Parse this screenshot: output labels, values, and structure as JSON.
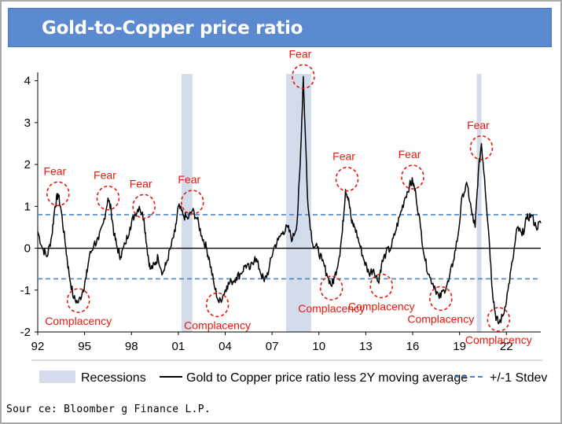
{
  "header": {
    "title": "Gold-to-Copper price ratio"
  },
  "source": "Sour ce: Bloomber g Finance L.P.",
  "colors": {
    "header_bg": "#5b8ad0",
    "recession": "#d3dcea",
    "stdev": "#4a86c8",
    "annotation": "#e8170c",
    "line": "#000000"
  },
  "chart_data": {
    "type": "line",
    "title": "Gold-to-Copper price ratio",
    "xlabel": "",
    "ylabel": "",
    "xlim": [
      1992,
      2024.2
    ],
    "ylim": [
      -2,
      4.2
    ],
    "x_tick_values": [
      1992,
      1995,
      1998,
      2001,
      2004,
      2007,
      2010,
      2013,
      2016,
      2019,
      2022
    ],
    "x_tick_labels": [
      "92",
      "95",
      "98",
      "01",
      "04",
      "07",
      "10",
      "13",
      "16",
      "19",
      "22"
    ],
    "y_ticks": [
      -2,
      -1,
      0,
      1,
      2,
      3,
      4
    ],
    "grid": false,
    "legend_position": "bottom",
    "series": [
      {
        "name": "Gold to Copper price ratio less 2Y moving average",
        "x": [
          1992.0,
          1992.3,
          1992.6,
          1992.9,
          1993.1,
          1993.3,
          1993.5,
          1993.8,
          1994.0,
          1994.3,
          1994.6,
          1994.9,
          1995.1,
          1995.3,
          1995.6,
          1995.9,
          1996.2,
          1996.5,
          1996.7,
          1996.9,
          1997.1,
          1997.3,
          1997.6,
          1997.9,
          1998.2,
          1998.5,
          1998.8,
          1999.0,
          1999.2,
          1999.5,
          1999.7,
          2000.0,
          2000.2,
          2000.5,
          2000.8,
          2001.0,
          2001.3,
          2001.6,
          2001.9,
          2002.2,
          2002.5,
          2002.8,
          2003.0,
          2003.3,
          2003.6,
          2003.9,
          2004.1,
          2004.4,
          2004.7,
          2005.0,
          2005.3,
          2005.6,
          2005.9,
          2006.2,
          2006.5,
          2006.8,
          2007.1,
          2007.4,
          2007.7,
          2008.0,
          2008.3,
          2008.6,
          2008.8,
          2009.0,
          2009.1,
          2009.3,
          2009.6,
          2009.9,
          2010.2,
          2010.5,
          2010.8,
          2011.0,
          2011.3,
          2011.5,
          2011.7,
          2011.9,
          2012.1,
          2012.3,
          2012.6,
          2012.9,
          2013.2,
          2013.5,
          2013.8,
          2014.0,
          2014.3,
          2014.6,
          2014.9,
          2015.2,
          2015.5,
          2015.8,
          2016.0,
          2016.2,
          2016.5,
          2016.8,
          2017.1,
          2017.4,
          2017.7,
          2018.0,
          2018.3,
          2018.6,
          2018.9,
          2019.2,
          2019.5,
          2019.8,
          2020.0,
          2020.2,
          2020.4,
          2020.6,
          2020.9,
          2021.1,
          2021.3,
          2021.5,
          2021.8,
          2022.1,
          2022.4,
          2022.7,
          2023.0,
          2023.3,
          2023.6,
          2023.9,
          2024.2
        ],
        "y": [
          0.4,
          0.0,
          -0.2,
          0.3,
          1.0,
          1.3,
          0.9,
          0.0,
          -0.6,
          -1.2,
          -1.3,
          -1.0,
          -0.7,
          -0.2,
          0.1,
          0.2,
          0.6,
          1.2,
          0.9,
          0.3,
          0.0,
          -0.2,
          0.1,
          0.5,
          0.8,
          1.0,
          0.7,
          0.0,
          -0.5,
          -0.4,
          -0.2,
          -0.6,
          -0.4,
          0.0,
          0.4,
          1.0,
          0.8,
          0.7,
          0.9,
          0.7,
          0.3,
          0.0,
          -0.3,
          -0.9,
          -1.3,
          -1.1,
          -0.9,
          -0.8,
          -0.7,
          -0.6,
          -0.4,
          -0.5,
          -0.2,
          -0.5,
          -0.8,
          -0.5,
          0.0,
          0.2,
          0.4,
          0.5,
          0.2,
          0.6,
          2.0,
          4.1,
          3.0,
          1.0,
          0.1,
          0.0,
          -0.3,
          -0.6,
          -0.9,
          -0.7,
          -0.2,
          0.4,
          1.4,
          1.2,
          0.6,
          0.5,
          0.1,
          -0.3,
          -0.6,
          -0.5,
          -0.8,
          -0.4,
          -0.1,
          0.0,
          0.4,
          0.8,
          1.2,
          1.5,
          1.6,
          1.3,
          0.5,
          -0.3,
          -0.7,
          -0.9,
          -1.2,
          -1.0,
          -0.8,
          -0.3,
          0.3,
          1.3,
          1.5,
          0.8,
          0.5,
          1.8,
          2.5,
          1.7,
          0.2,
          -1.0,
          -1.6,
          -1.8,
          -1.6,
          -1.0,
          -0.3,
          0.5,
          0.3,
          0.7,
          0.8,
          0.5,
          0.6
        ]
      }
    ],
    "reference_lines": [
      {
        "name": "+/-1 Stdev",
        "y": 0.8
      },
      {
        "y": -0.73
      }
    ],
    "recessions": [
      {
        "start": 2001.2,
        "end": 2001.9
      },
      {
        "start": 2007.9,
        "end": 2009.5
      },
      {
        "start": 2020.1,
        "end": 2020.4
      }
    ],
    "annotations": [
      {
        "text": "Fear",
        "x": 1993.3,
        "y": 1.3,
        "kind": "fear"
      },
      {
        "text": "Fear",
        "x": 1996.5,
        "y": 1.2,
        "kind": "fear"
      },
      {
        "text": "Fear",
        "x": 1998.8,
        "y": 1.0,
        "kind": "fear"
      },
      {
        "text": "Fear",
        "x": 2001.9,
        "y": 1.1,
        "kind": "fear"
      },
      {
        "text": "Fear",
        "x": 2009.0,
        "y": 4.1,
        "kind": "fear"
      },
      {
        "text": "Fear",
        "x": 2011.8,
        "y": 1.65,
        "kind": "fear"
      },
      {
        "text": "Fear",
        "x": 2016.0,
        "y": 1.7,
        "kind": "fear"
      },
      {
        "text": "Fear",
        "x": 2020.4,
        "y": 2.4,
        "kind": "fear"
      },
      {
        "text": "Complacency",
        "x": 1994.6,
        "y": -1.25,
        "kind": "complacency"
      },
      {
        "text": "Complacency",
        "x": 2003.5,
        "y": -1.35,
        "kind": "complacency"
      },
      {
        "text": "Complacency",
        "x": 2010.8,
        "y": -0.95,
        "kind": "complacency"
      },
      {
        "text": "Complacency",
        "x": 2014.0,
        "y": -0.9,
        "kind": "complacency"
      },
      {
        "text": "Complacency",
        "x": 2017.8,
        "y": -1.2,
        "kind": "complacency"
      },
      {
        "text": "Complacency",
        "x": 2021.5,
        "y": -1.7,
        "kind": "complacency"
      }
    ],
    "legend": [
      {
        "label": "Recessions",
        "kind": "box"
      },
      {
        "label": "Gold to Copper price ratio less 2Y moving average",
        "kind": "line"
      },
      {
        "label": "+/-1 Stdev",
        "kind": "dashed"
      }
    ]
  }
}
